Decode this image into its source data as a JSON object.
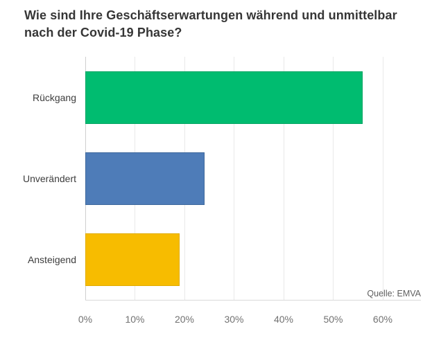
{
  "title": "Wie sind Ihre Geschäftserwartungen während und unmittelbar nach der Covid-19 Phase?",
  "source": "Quelle: EMVA",
  "chart_data": {
    "type": "bar",
    "orientation": "horizontal",
    "title": "Wie sind Ihre Geschäftserwartungen während und unmittelbar nach der Covid-19 Phase?",
    "categories": [
      "Rückgang",
      "Unverändert",
      "Ansteigend"
    ],
    "values": [
      56,
      24,
      19
    ],
    "unit": "%",
    "xlabel": "",
    "ylabel": "",
    "xlim": [
      0,
      67.7
    ],
    "x_tick_values": [
      0,
      10,
      20,
      30,
      40,
      50,
      60
    ],
    "x_tick_labels": [
      "0%",
      "10%",
      "20%",
      "30%",
      "40%",
      "50%",
      "60%"
    ],
    "grid": "vertical-gridlines-on",
    "legend": "none",
    "bar_colors": [
      "#00bc70",
      "#4e7cb8",
      "#f7bc00"
    ],
    "bar_border_colors": [
      "#05a463",
      "#3e689c",
      "#e0ab00"
    ],
    "source_annotation": "Quelle: EMVA"
  }
}
